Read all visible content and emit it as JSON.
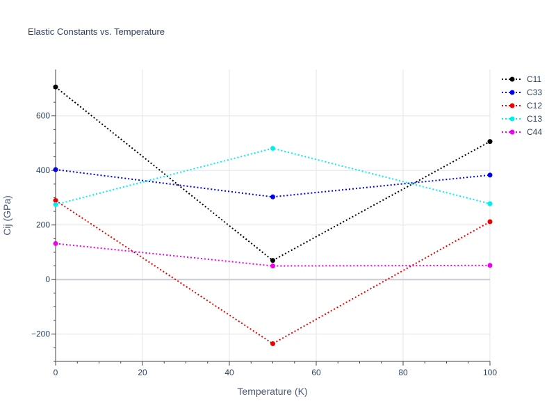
{
  "chart_data": {
    "type": "line",
    "title": "Elastic Constants vs. Temperature",
    "xlabel": "Temperature (K)",
    "ylabel": "Cij (GPa)",
    "xlim": [
      0,
      100
    ],
    "ylim": [
      -300,
      770
    ],
    "x_ticks": [
      0,
      20,
      40,
      60,
      80,
      100
    ],
    "y_ticks": [
      -200,
      0,
      200,
      400,
      600
    ],
    "x_tick_labels": [
      "0",
      "20",
      "40",
      "60",
      "80",
      "100"
    ],
    "y_tick_labels": [
      "−200",
      "0",
      "200",
      "400",
      "600"
    ],
    "grid": true,
    "legend_position": "top-right",
    "x": [
      0,
      50,
      100
    ],
    "series": [
      {
        "name": "C11",
        "color": "#000000",
        "values": [
          706,
          70,
          506
        ]
      },
      {
        "name": "C33",
        "color": "#0000ee",
        "values": [
          403,
          303,
          383
        ]
      },
      {
        "name": "C12",
        "color": "#ee0000",
        "values": [
          290,
          -235,
          212
        ]
      },
      {
        "name": "C13",
        "color": "#00eeee",
        "values": [
          275,
          481,
          278
        ]
      },
      {
        "name": "C44",
        "color": "#ee00ee",
        "values": [
          132,
          50,
          52
        ]
      }
    ]
  }
}
